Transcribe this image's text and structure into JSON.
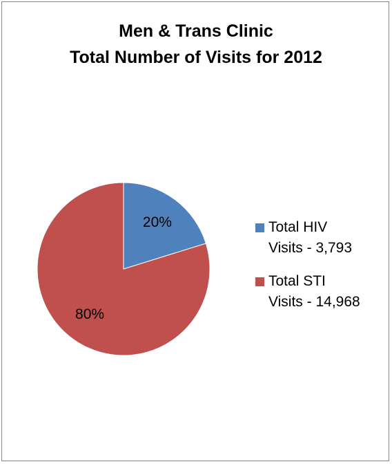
{
  "chart_data": {
    "type": "pie",
    "title": [
      "Men & Trans Clinic",
      "Total Number of Visits for 2012"
    ],
    "slices": [
      {
        "legend_lines": [
          "Total HIV",
          "Visits - 3,793"
        ],
        "value": 3793,
        "percent_label": "20%",
        "color": "#4f81bd"
      },
      {
        "legend_lines": [
          "Total STI",
          "Visits - 14,968"
        ],
        "value": 14968,
        "percent_label": "80%",
        "color": "#c0504d"
      }
    ],
    "legend_placement": "right"
  }
}
